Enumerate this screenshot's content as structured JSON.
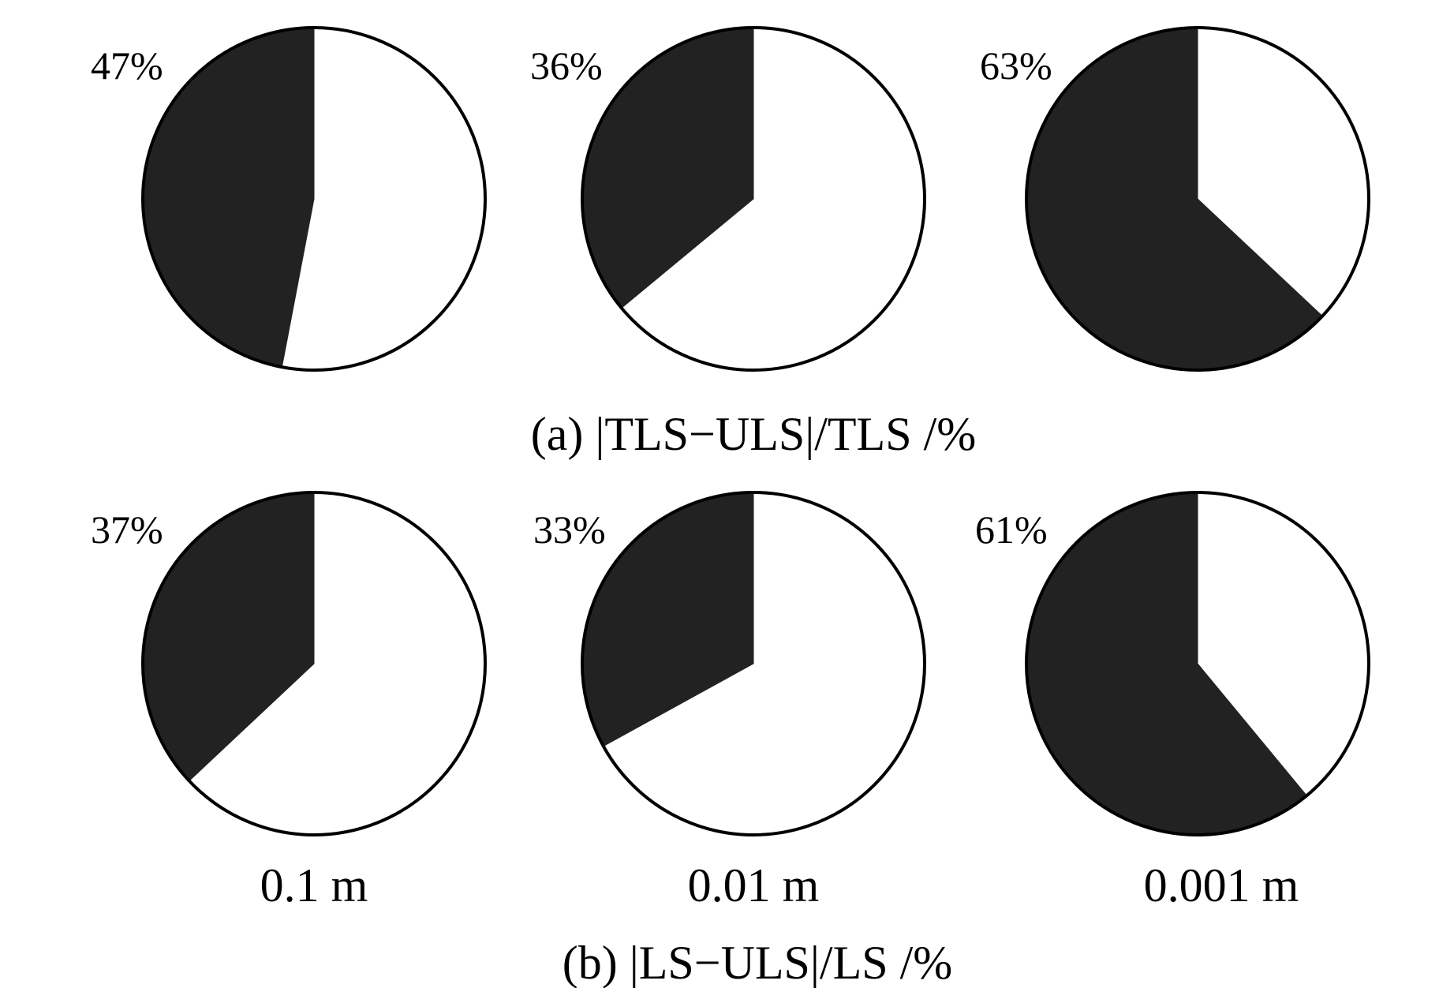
{
  "colors": {
    "share": "#222222",
    "remainder": "#ffffff",
    "outline": "#000000"
  },
  "captions": {
    "a": "(a) |TLS−ULS|/TLS /%",
    "b": "(b) |LS−ULS|/LS /%"
  },
  "resolution_labels": [
    "0.1 m",
    "0.01 m",
    "0.001 m"
  ],
  "chart_data": [
    {
      "type": "pie",
      "panel": "a",
      "caption": "(a) |TLS−ULS|/TLS /%",
      "pies": [
        {
          "value_label": "47%",
          "value": 47
        },
        {
          "value_label": "36%",
          "value": 36
        },
        {
          "value_label": "63%",
          "value": 63
        }
      ]
    },
    {
      "type": "pie",
      "panel": "b",
      "caption": "(b) |LS−ULS|/LS /%",
      "categories": [
        "0.1 m",
        "0.01 m",
        "0.001 m"
      ],
      "pies": [
        {
          "value_label": "37%",
          "value": 37
        },
        {
          "value_label": "33%",
          "value": 33
        },
        {
          "value_label": "61%",
          "value": 61
        }
      ]
    }
  ]
}
